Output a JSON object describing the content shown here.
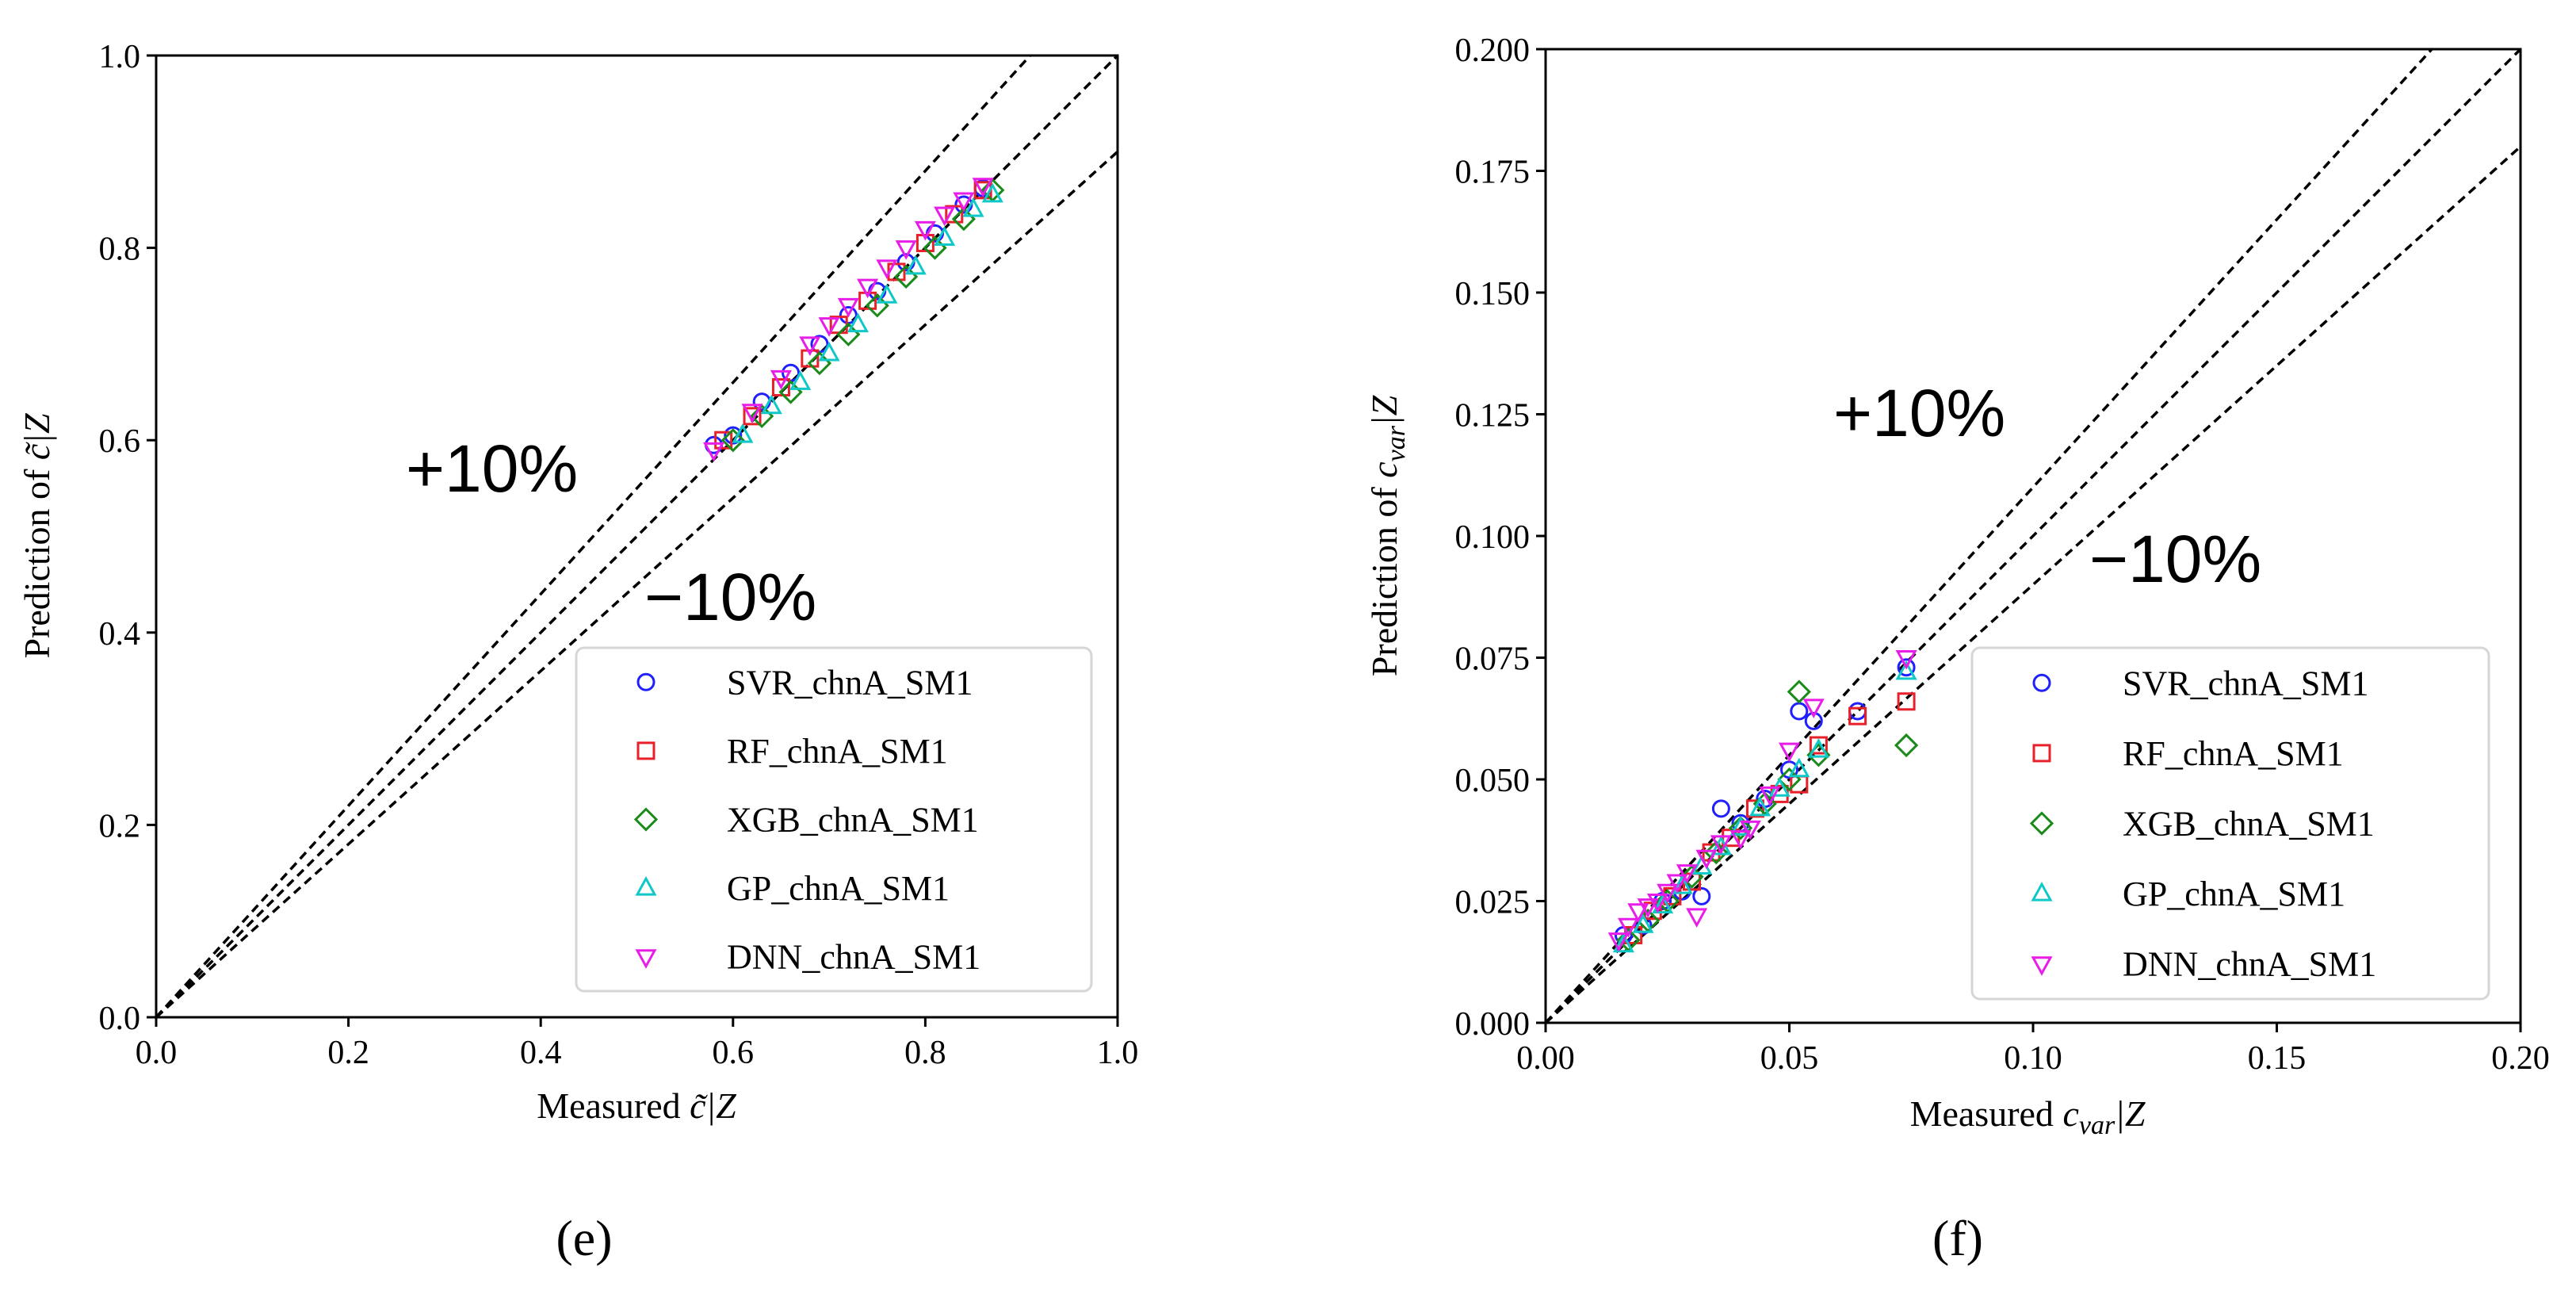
{
  "chart_data": [
    {
      "type": "scatter",
      "panel_label": "(e)",
      "title": "",
      "xlabel_parts": [
        "Measured ",
        "c̃",
        "|Z"
      ],
      "ylabel_parts": [
        "Prediction of ",
        "c̃",
        "|Z"
      ],
      "xlim": [
        0.0,
        1.0
      ],
      "ylim": [
        0.0,
        1.0
      ],
      "xticks": [
        0.0,
        0.2,
        0.4,
        0.6,
        0.8,
        1.0
      ],
      "xtick_labels": [
        "0.0",
        "0.2",
        "0.4",
        "0.6",
        "0.8",
        "1.0"
      ],
      "yticks": [
        0.0,
        0.2,
        0.4,
        0.6,
        0.8,
        1.0
      ],
      "ytick_labels": [
        "0.0",
        "0.2",
        "0.4",
        "0.6",
        "0.8",
        "1.0"
      ],
      "reference_lines": [
        {
          "name": "plus-10",
          "slope": 1.1
        },
        {
          "name": "identity",
          "slope": 1.0
        },
        {
          "name": "minus-10",
          "slope": 0.9
        }
      ],
      "annotations": [
        {
          "text": "+10%",
          "x": 0.28,
          "y": 0.57
        },
        {
          "text": "−10%",
          "x": 0.51,
          "y": 0.43
        }
      ],
      "legend_location": "lower-right",
      "series": [
        {
          "name": "SVR_chnA_SM1",
          "marker": "circle",
          "color": "#1f1fff",
          "points": [
            [
              0.58,
              0.595
            ],
            [
              0.6,
              0.605
            ],
            [
              0.63,
              0.64
            ],
            [
              0.66,
              0.67
            ],
            [
              0.69,
              0.7
            ],
            [
              0.72,
              0.73
            ],
            [
              0.75,
              0.755
            ],
            [
              0.78,
              0.785
            ],
            [
              0.81,
              0.815
            ],
            [
              0.84,
              0.845
            ],
            [
              0.86,
              0.862
            ]
          ]
        },
        {
          "name": "RF_chnA_SM1",
          "marker": "square",
          "color": "#e8202a",
          "points": [
            [
              0.59,
              0.6
            ],
            [
              0.62,
              0.625
            ],
            [
              0.65,
              0.655
            ],
            [
              0.68,
              0.685
            ],
            [
              0.71,
              0.72
            ],
            [
              0.74,
              0.745
            ],
            [
              0.77,
              0.775
            ],
            [
              0.8,
              0.805
            ],
            [
              0.83,
              0.835
            ],
            [
              0.86,
              0.86
            ]
          ]
        },
        {
          "name": "XGB_chnA_SM1",
          "marker": "diamond",
          "color": "#1a8a1a",
          "points": [
            [
              0.6,
              0.6
            ],
            [
              0.63,
              0.625
            ],
            [
              0.66,
              0.65
            ],
            [
              0.69,
              0.68
            ],
            [
              0.72,
              0.71
            ],
            [
              0.75,
              0.74
            ],
            [
              0.78,
              0.77
            ],
            [
              0.81,
              0.8
            ],
            [
              0.84,
              0.83
            ],
            [
              0.87,
              0.86
            ]
          ]
        },
        {
          "name": "GP_chnA_SM1",
          "marker": "triangle-up",
          "color": "#10c8c8",
          "points": [
            [
              0.61,
              0.605
            ],
            [
              0.64,
              0.635
            ],
            [
              0.67,
              0.66
            ],
            [
              0.7,
              0.69
            ],
            [
              0.73,
              0.72
            ],
            [
              0.76,
              0.75
            ],
            [
              0.79,
              0.78
            ],
            [
              0.82,
              0.81
            ],
            [
              0.85,
              0.84
            ],
            [
              0.87,
              0.855
            ]
          ]
        },
        {
          "name": "DNN_chnA_SM1",
          "marker": "triangle-down",
          "color": "#e81ee8",
          "points": [
            [
              0.58,
              0.59
            ],
            [
              0.62,
              0.63
            ],
            [
              0.65,
              0.665
            ],
            [
              0.68,
              0.7
            ],
            [
              0.7,
              0.72
            ],
            [
              0.72,
              0.74
            ],
            [
              0.74,
              0.76
            ],
            [
              0.76,
              0.78
            ],
            [
              0.78,
              0.8
            ],
            [
              0.8,
              0.82
            ],
            [
              0.82,
              0.835
            ],
            [
              0.84,
              0.85
            ],
            [
              0.86,
              0.865
            ]
          ]
        }
      ]
    },
    {
      "type": "scatter",
      "panel_label": "(f)",
      "title": "",
      "xlabel_parts": [
        "Measured ",
        "c",
        "var",
        "|Z"
      ],
      "ylabel_parts": [
        "Prediction of ",
        "c",
        "var",
        "|Z"
      ],
      "xlim": [
        0.0,
        0.2
      ],
      "ylim": [
        0.0,
        0.2
      ],
      "xticks": [
        0.0,
        0.05,
        0.1,
        0.15,
        0.2
      ],
      "xtick_labels": [
        "0.00",
        "0.05",
        "0.10",
        "0.15",
        "0.20"
      ],
      "yticks": [
        0.0,
        0.025,
        0.05,
        0.075,
        0.1,
        0.125,
        0.15,
        0.175,
        0.2
      ],
      "ytick_labels": [
        "0.000",
        "0.025",
        "0.050",
        "0.075",
        "0.100",
        "0.125",
        "0.150",
        "0.175",
        "0.200"
      ],
      "reference_lines": [
        {
          "name": "plus-10",
          "slope": 1.1
        },
        {
          "name": "identity",
          "slope": 1.0
        },
        {
          "name": "minus-10",
          "slope": 0.9
        }
      ],
      "annotations": [
        {
          "text": "+10%",
          "x": 0.061,
          "y": 0.124
        },
        {
          "text": "−10%",
          "x": 0.113,
          "y": 0.094
        }
      ],
      "legend_location": "lower-right",
      "series": [
        {
          "name": "SVR_chnA_SM1",
          "marker": "circle",
          "color": "#1f1fff",
          "points": [
            [
              0.016,
              0.018
            ],
            [
              0.02,
              0.02
            ],
            [
              0.024,
              0.025
            ],
            [
              0.028,
              0.027
            ],
            [
              0.032,
              0.026
            ],
            [
              0.036,
              0.044
            ],
            [
              0.04,
              0.041
            ],
            [
              0.045,
              0.046
            ],
            [
              0.05,
              0.052
            ],
            [
              0.052,
              0.064
            ],
            [
              0.055,
              0.062
            ],
            [
              0.064,
              0.064
            ],
            [
              0.074,
              0.073
            ]
          ]
        },
        {
          "name": "RF_chnA_SM1",
          "marker": "square",
          "color": "#e8202a",
          "points": [
            [
              0.018,
              0.018
            ],
            [
              0.022,
              0.023
            ],
            [
              0.026,
              0.026
            ],
            [
              0.03,
              0.029
            ],
            [
              0.034,
              0.035
            ],
            [
              0.038,
              0.038
            ],
            [
              0.043,
              0.044
            ],
            [
              0.048,
              0.047
            ],
            [
              0.052,
              0.049
            ],
            [
              0.056,
              0.057
            ],
            [
              0.064,
              0.063
            ],
            [
              0.074,
              0.066
            ]
          ]
        },
        {
          "name": "XGB_chnA_SM1",
          "marker": "diamond",
          "color": "#1a8a1a",
          "points": [
            [
              0.017,
              0.017
            ],
            [
              0.021,
              0.021
            ],
            [
              0.025,
              0.025
            ],
            [
              0.03,
              0.03
            ],
            [
              0.035,
              0.035
            ],
            [
              0.04,
              0.04
            ],
            [
              0.045,
              0.045
            ],
            [
              0.05,
              0.05
            ],
            [
              0.052,
              0.068
            ],
            [
              0.056,
              0.055
            ],
            [
              0.074,
              0.057
            ]
          ]
        },
        {
          "name": "GP_chnA_SM1",
          "marker": "triangle-up",
          "color": "#10c8c8",
          "points": [
            [
              0.016,
              0.016
            ],
            [
              0.02,
              0.02
            ],
            [
              0.024,
              0.024
            ],
            [
              0.028,
              0.028
            ],
            [
              0.032,
              0.032
            ],
            [
              0.036,
              0.036
            ],
            [
              0.04,
              0.04
            ],
            [
              0.044,
              0.044
            ],
            [
              0.048,
              0.048
            ],
            [
              0.052,
              0.052
            ],
            [
              0.056,
              0.056
            ],
            [
              0.074,
              0.072
            ]
          ]
        },
        {
          "name": "DNN_chnA_SM1",
          "marker": "triangle-down",
          "color": "#e81ee8",
          "points": [
            [
              0.015,
              0.017
            ],
            [
              0.017,
              0.02
            ],
            [
              0.019,
              0.023
            ],
            [
              0.021,
              0.024
            ],
            [
              0.023,
              0.025
            ],
            [
              0.025,
              0.027
            ],
            [
              0.027,
              0.029
            ],
            [
              0.029,
              0.031
            ],
            [
              0.031,
              0.022
            ],
            [
              0.033,
              0.034
            ],
            [
              0.036,
              0.037
            ],
            [
              0.04,
              0.038
            ],
            [
              0.042,
              0.04
            ],
            [
              0.046,
              0.047
            ],
            [
              0.05,
              0.056
            ],
            [
              0.055,
              0.065
            ],
            [
              0.074,
              0.075
            ]
          ]
        }
      ]
    }
  ]
}
